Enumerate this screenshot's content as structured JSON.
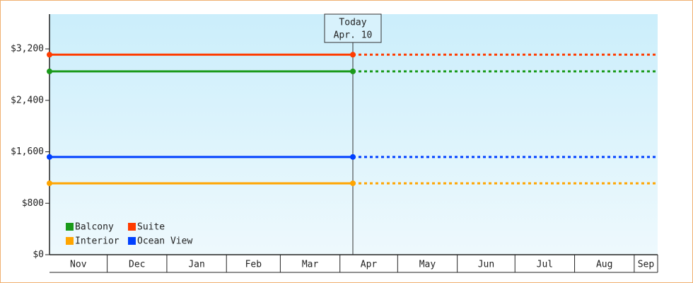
{
  "chart_data": {
    "type": "line",
    "categories": [
      "Nov",
      "Dec",
      "Jan",
      "Feb",
      "Mar",
      "Apr",
      "May",
      "Jun",
      "Jul",
      "Aug",
      "Sep"
    ],
    "annotation": [
      "Today",
      "Apr. 10"
    ],
    "series": [
      {
        "name": "Balcony",
        "color": "#1a9a1a",
        "value": 2850
      },
      {
        "name": "Suite",
        "color": "#ff3c00",
        "value": 3110
      },
      {
        "name": "Interior",
        "color": "#ffa500",
        "value": 1110
      },
      {
        "name": "Ocean View",
        "color": "#0040ff",
        "value": 1520
      }
    ],
    "ylim": [
      0,
      3740
    ],
    "yticks": [
      {
        "value": 0,
        "label": "$0"
      },
      {
        "value": 800,
        "label": "$800"
      },
      {
        "value": 1600,
        "label": "$1,600"
      },
      {
        "value": 2400,
        "label": "$2,400"
      },
      {
        "value": 3200,
        "label": "$3,200"
      }
    ],
    "legend": "bottom-left"
  }
}
